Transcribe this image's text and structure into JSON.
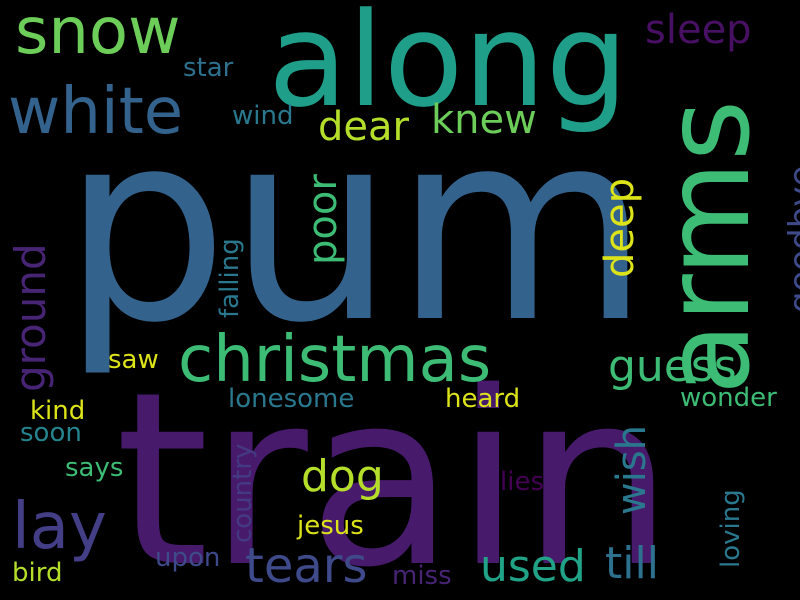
{
  "words": [
    {
      "text": "pum",
      "color": "#33638D"
    },
    {
      "text": "train",
      "color": "#481A6C"
    },
    {
      "text": "along",
      "color": "#1F9E89"
    },
    {
      "text": "arms",
      "color": "#3CBC75"
    },
    {
      "text": "snow",
      "color": "#6CCE59"
    },
    {
      "text": "white",
      "color": "#33638D"
    },
    {
      "text": "christmas",
      "color": "#3CBC75"
    },
    {
      "text": "sleep",
      "color": "#471063"
    },
    {
      "text": "star",
      "color": "#2D718E"
    },
    {
      "text": "wind",
      "color": "#2A788E"
    },
    {
      "text": "dear",
      "color": "#B5DE2B"
    },
    {
      "text": "knew",
      "color": "#6CCE59"
    },
    {
      "text": "goodbye",
      "color": "#3E4A89"
    },
    {
      "text": "poor",
      "color": "#3CBC75"
    },
    {
      "text": "deep",
      "color": "#DCE319"
    },
    {
      "text": "falling",
      "color": "#2A788E"
    },
    {
      "text": "ground",
      "color": "#482475"
    },
    {
      "text": "guess",
      "color": "#3CBC75"
    },
    {
      "text": "saw",
      "color": "#DCE319"
    },
    {
      "text": "kind",
      "color": "#DCE319"
    },
    {
      "text": "lonesome",
      "color": "#2A788E"
    },
    {
      "text": "heard",
      "color": "#DCE319"
    },
    {
      "text": "wonder",
      "color": "#3CBC75"
    },
    {
      "text": "soon",
      "color": "#25858E"
    },
    {
      "text": "wish",
      "color": "#2A788E"
    },
    {
      "text": "country",
      "color": "#443A83"
    },
    {
      "text": "says",
      "color": "#3CBC75"
    },
    {
      "text": "dog",
      "color": "#B5DE2B"
    },
    {
      "text": "lies",
      "color": "#440154"
    },
    {
      "text": "lay",
      "color": "#433E85"
    },
    {
      "text": "jesus",
      "color": "#DCE319"
    },
    {
      "text": "loving",
      "color": "#2A788E"
    },
    {
      "text": "tears",
      "color": "#3E4A89"
    },
    {
      "text": "used",
      "color": "#20A386"
    },
    {
      "text": "till",
      "color": "#2D718E"
    },
    {
      "text": "upon",
      "color": "#3E4A89"
    },
    {
      "text": "miss",
      "color": "#482475"
    },
    {
      "text": "bird",
      "color": "#B5DE2B"
    }
  ]
}
